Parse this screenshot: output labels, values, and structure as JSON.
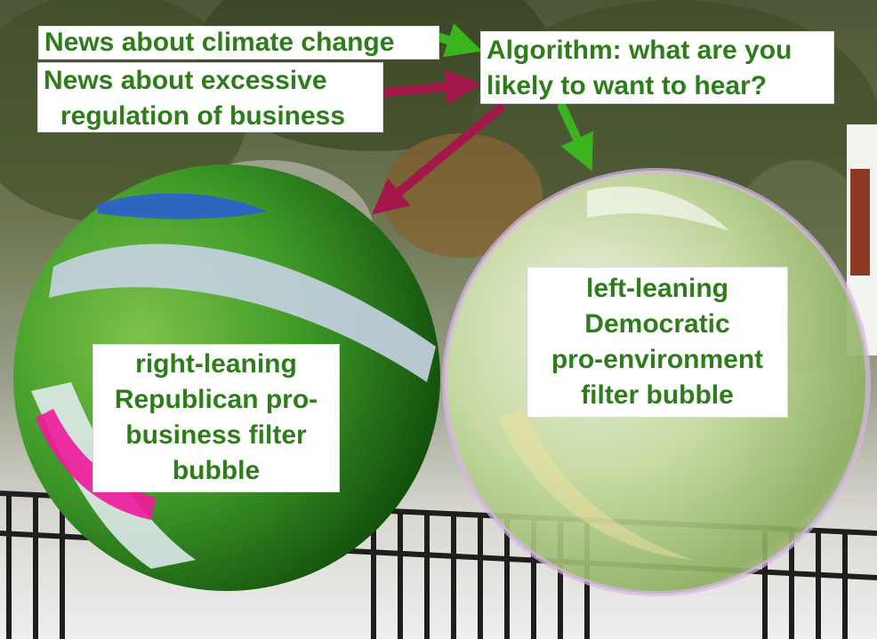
{
  "labels": {
    "news_climate": "News about climate change",
    "news_regulation_line1": "News about excessive",
    "news_regulation_line2": "regulation of business",
    "algorithm_line1": "Algorithm: what are you",
    "algorithm_line2": "likely to want to hear?",
    "right_bubble_line1": "right-leaning",
    "right_bubble_line2": "Republican pro-",
    "right_bubble_line3": "business filter",
    "right_bubble_line4": "bubble",
    "left_bubble_line1": "left-leaning",
    "left_bubble_line2": "Democratic",
    "left_bubble_line3": "pro-environment",
    "left_bubble_line4": "filter bubble"
  },
  "colors": {
    "label_text": "#2e7d1b",
    "arrow_green": "#3cb41e",
    "arrow_red": "#a3174a",
    "right_bubble": "#2f8a1c",
    "left_bubble": "#cfe6a8"
  },
  "connections": [
    {
      "from": "news_climate",
      "to": "algorithm",
      "color": "arrow_green"
    },
    {
      "from": "news_regulation",
      "to": "algorithm",
      "color": "arrow_red"
    },
    {
      "from": "algorithm",
      "to": "right_bubble",
      "color": "arrow_red"
    },
    {
      "from": "algorithm",
      "to": "left_bubble",
      "color": "arrow_green"
    }
  ]
}
